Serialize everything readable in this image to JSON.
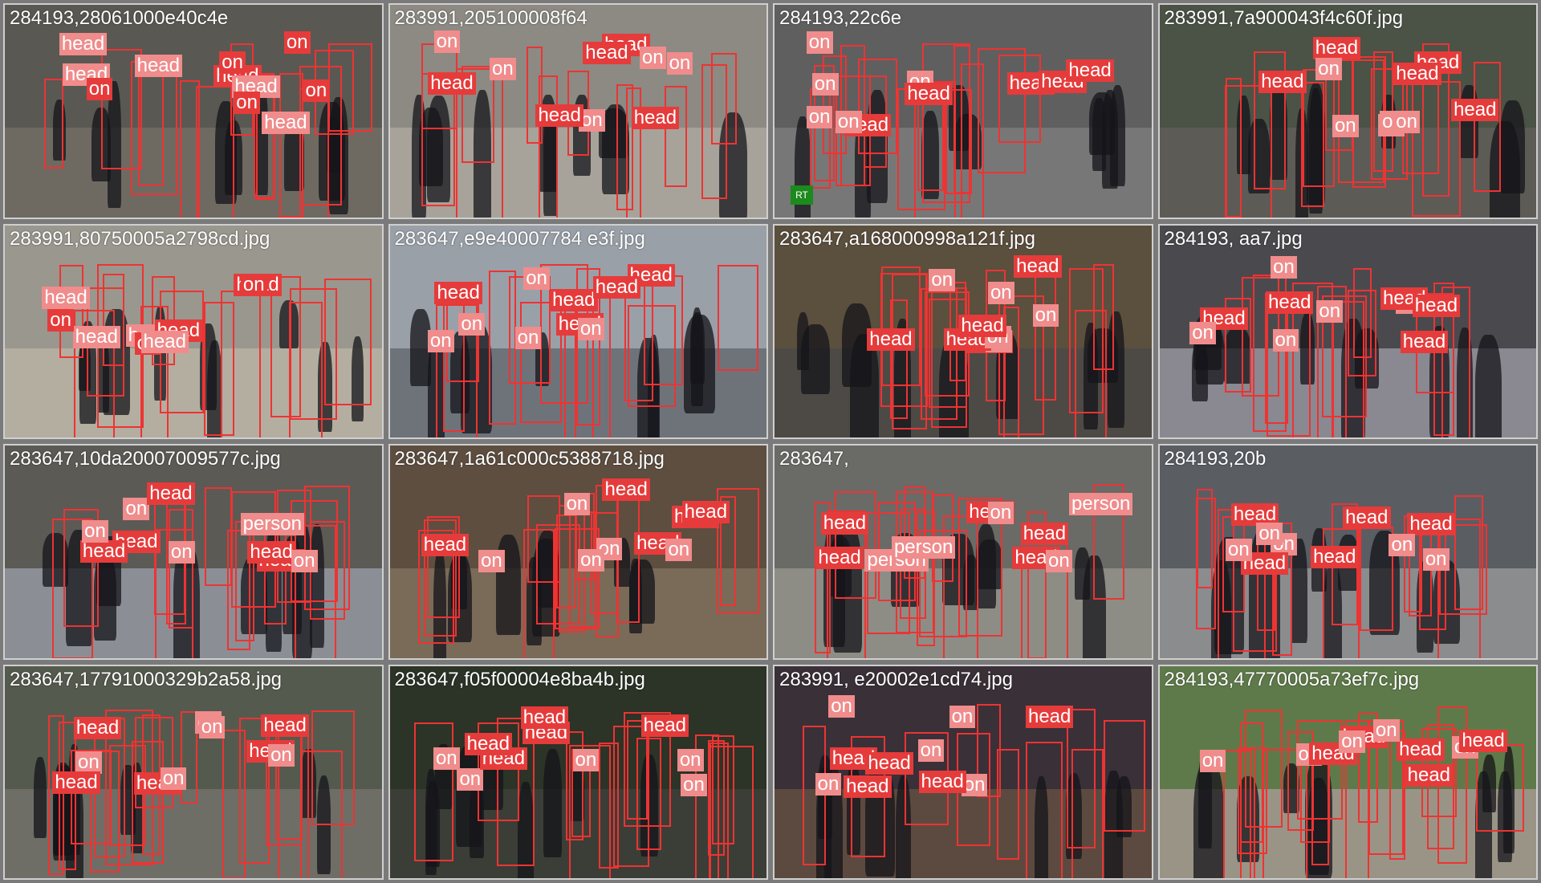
{
  "tiles": [
    {
      "caption": "284193,28061000e40c4e",
      "bg": "#5a5852",
      "ground": "#6e6a62",
      "labels": [
        "head",
        "head",
        "on",
        "head",
        "on",
        "head",
        "on",
        "head",
        "on",
        "head",
        "on"
      ],
      "boxes": 14
    },
    {
      "caption": "283991,205100008f64",
      "bg": "#8c8a83",
      "ground": "#a7a39a",
      "labels": [
        "head",
        "on",
        "head",
        "on",
        "head",
        "on",
        "head",
        "on",
        "head",
        "on"
      ],
      "boxes": 12
    },
    {
      "caption": "284193,22c6e",
      "bg": "#5f5f5f",
      "ground": "#777777",
      "labels": [
        "head",
        "on",
        "head",
        "on",
        "head",
        "on",
        "head",
        "on",
        "head",
        "on"
      ],
      "boxes": 16,
      "logo": "RT"
    },
    {
      "caption": "283991,7a900043f4c60f.jpg",
      "bg": "#4b5246",
      "ground": "#5d5b55",
      "labels": [
        "head",
        "on",
        "head",
        "on",
        "head",
        "on",
        "head",
        "on",
        "head",
        "on"
      ],
      "boxes": 14
    },
    {
      "caption": "283991,80750005a2798cd.jpg",
      "bg": "#9a978e",
      "ground": "#b4aea1",
      "labels": [
        "head",
        "head",
        "head",
        "head",
        "on",
        "head",
        "on",
        "head",
        "on"
      ],
      "boxes": 14
    },
    {
      "caption": "283647,e9e40007784 e3f.jpg",
      "bg": "#9aa0a8",
      "ground": "#6e737a",
      "labels": [
        "head",
        "on",
        "head",
        "on",
        "head",
        "on",
        "head",
        "on",
        "head",
        "on"
      ],
      "boxes": 14
    },
    {
      "caption": "283647,a168000998a121f.jpg",
      "bg": "#5b4f3e",
      "ground": "#4d4a46",
      "labels": [
        "head",
        "on",
        "head",
        "on",
        "head",
        "on",
        "head",
        "on",
        "head",
        "on"
      ],
      "boxes": 16
    },
    {
      "caption": "284193,   aa7.jpg",
      "bg": "#4a4a4e",
      "ground": "#8a8890",
      "labels": [
        "head",
        "on",
        "head",
        "on",
        "head",
        "on",
        "head",
        "on",
        "head",
        "on"
      ],
      "boxes": 14
    },
    {
      "caption": "283647,10da20007009577c.jpg",
      "bg": "#5c5a55",
      "ground": "#8b8f95",
      "labels": [
        "head",
        "on",
        "head",
        "on",
        "head",
        "person",
        "head",
        "on",
        "head",
        "on"
      ],
      "boxes": 16
    },
    {
      "caption": "283647,1a61c000c5388718.jpg",
      "bg": "#5d4e40",
      "ground": "#7a6a58",
      "labels": [
        "head",
        "on",
        "head",
        "on",
        "head",
        "on",
        "head",
        "on",
        "head",
        "on"
      ],
      "boxes": 16
    },
    {
      "caption": "283647,  ",
      "bg": "#6a6a66",
      "ground": "#8d8d86",
      "labels": [
        "head",
        "person",
        "head",
        "person",
        "head",
        "on",
        "head",
        "person",
        "head",
        "on"
      ],
      "boxes": 16
    },
    {
      "caption": "284193,20b",
      "bg": "#5a5e63",
      "ground": "#8a8c8e",
      "labels": [
        "head",
        "on",
        "head",
        "on",
        "head",
        "on",
        "head",
        "on",
        "head",
        "on"
      ],
      "boxes": 16
    },
    {
      "caption": "283647,17791000329b2a58.jpg",
      "bg": "#555a4e",
      "ground": "#6e6e66",
      "labels": [
        "head",
        "on",
        "head",
        "on",
        "head",
        "on",
        "head",
        "on",
        "head",
        "on"
      ],
      "boxes": 18
    },
    {
      "caption": "283647,f05f00004e8ba4b.jpg",
      "bg": "#2c3327",
      "ground": "#3b3e36",
      "labels": [
        "head",
        "on",
        "head",
        "on",
        "head",
        "on",
        "head",
        "on",
        "head",
        "on"
      ],
      "boxes": 16
    },
    {
      "caption": "283991,   e20002e1cd74.jpg",
      "bg": "#3a3038",
      "ground": "#5c4a40",
      "labels": [
        "head",
        "on",
        "head",
        "on",
        "head",
        "on",
        "head",
        "on",
        "head",
        "on"
      ],
      "boxes": 10
    },
    {
      "caption": "284193,47770005a73ef7c.jpg",
      "bg": "#5f7a4a",
      "ground": "#9a9486",
      "labels": [
        "head",
        "on",
        "head",
        "on",
        "head",
        "on",
        "head",
        "on",
        "head",
        "on"
      ],
      "boxes": 18
    }
  ]
}
